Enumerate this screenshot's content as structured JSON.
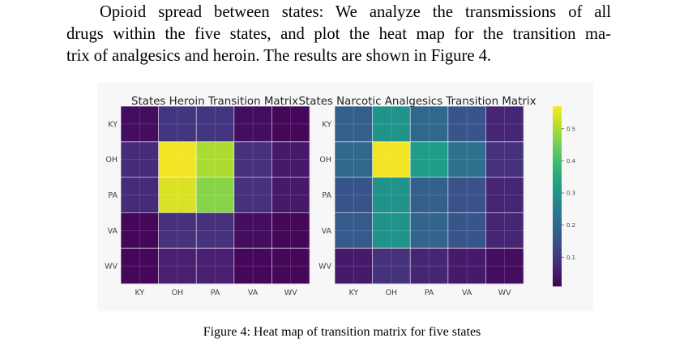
{
  "paragraph": {
    "line1": "Opioid spread between states: We analyze the transmissions of all",
    "line2": "drugs within the five states, and plot the heat map for the transition ma-",
    "line3": "trix of analgesics and heroin. The results are shown in Figure 4."
  },
  "caption": "Figure 4: Heat map of transition matrix for five states",
  "chart_data": [
    {
      "type": "heatmap",
      "title": "States Heroin Transition Matrix",
      "x_categories": [
        "KY",
        "OH",
        "PA",
        "VA",
        "WV"
      ],
      "y_categories": [
        "KY",
        "OH",
        "PA",
        "VA",
        "WV"
      ],
      "values": [
        [
          0.03,
          0.1,
          0.1,
          0.03,
          0.02
        ],
        [
          0.08,
          0.56,
          0.5,
          0.09,
          0.05
        ],
        [
          0.08,
          0.54,
          0.47,
          0.09,
          0.05
        ],
        [
          0.02,
          0.09,
          0.09,
          0.03,
          0.02
        ],
        [
          0.02,
          0.06,
          0.06,
          0.02,
          0.02
        ]
      ]
    },
    {
      "type": "heatmap",
      "title": "States Narcotic Analgesics Transition Matrix",
      "x_categories": [
        "KY",
        "OH",
        "PA",
        "VA",
        "WV"
      ],
      "y_categories": [
        "KY",
        "OH",
        "PA",
        "VA",
        "WV"
      ],
      "values": [
        [
          0.18,
          0.3,
          0.2,
          0.16,
          0.07
        ],
        [
          0.2,
          0.56,
          0.32,
          0.22,
          0.09
        ],
        [
          0.16,
          0.3,
          0.18,
          0.15,
          0.07
        ],
        [
          0.17,
          0.3,
          0.19,
          0.16,
          0.07
        ],
        [
          0.05,
          0.09,
          0.07,
          0.05,
          0.03
        ]
      ],
      "colorbar": {
        "ticks": [
          "0.1",
          "0.2",
          "0.3",
          "0.4",
          "0.5"
        ],
        "tick_values": [
          0.1,
          0.2,
          0.3,
          0.4,
          0.5
        ],
        "range": [
          0.01,
          0.57
        ],
        "colormap": "viridis"
      }
    }
  ]
}
